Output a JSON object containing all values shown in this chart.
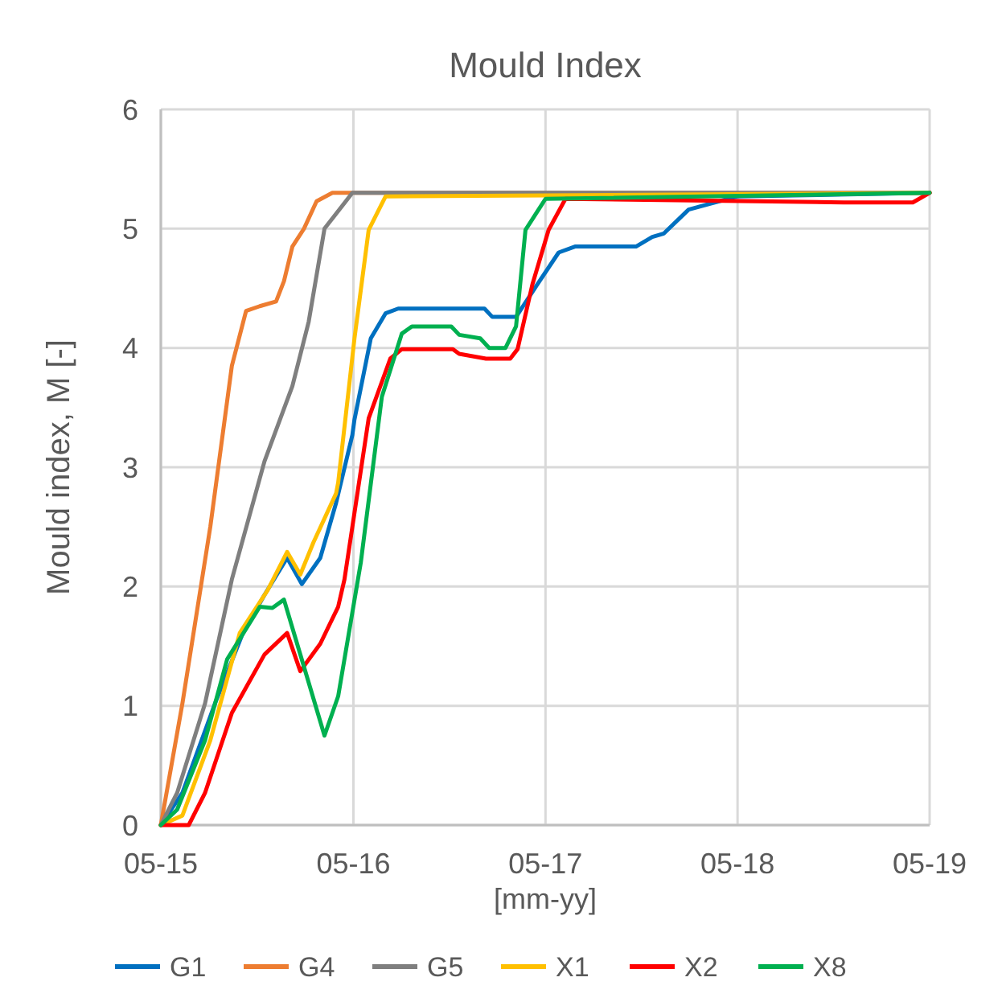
{
  "chart_data": {
    "type": "line",
    "title": "Mould Index",
    "xlabel": "[mm-yy]",
    "ylabel": "Mould index, M [-]",
    "xlim": [
      "2015-05",
      "2019-05"
    ],
    "xticks": [
      {
        "value": "2015-05",
        "label": "05-15"
      },
      {
        "value": "2016-05",
        "label": "05-16"
      },
      {
        "value": "2017-05",
        "label": "05-17"
      },
      {
        "value": "2018-05",
        "label": "05-18"
      },
      {
        "value": "2019-05",
        "label": "05-19"
      }
    ],
    "ylim": [
      0,
      6
    ],
    "yticks": [
      0,
      1,
      2,
      3,
      4,
      5,
      6
    ],
    "grid": true,
    "legend": "bottom",
    "marker": "none",
    "line_style": "solid",
    "series": [
      {
        "name": "G1",
        "color": "#0070c0",
        "x": [
          "2015-05-01",
          "2015-06-11",
          "2015-08-12",
          "2015-10-04",
          "2015-11-14",
          "2015-12-27",
          "2016-01-24",
          "2016-02-28",
          "2016-03-29",
          "2016-04-29",
          "2016-05-03",
          "2016-06-03",
          "2016-07-01",
          "2016-07-25",
          "2017-01-05",
          "2017-01-20",
          "2017-03-06",
          "2017-04-15",
          "2017-05-26",
          "2017-06-26",
          "2017-10-20",
          "2017-11-20",
          "2017-12-12",
          "2018-01-28",
          "2018-04-30",
          "2019-05-01"
        ],
        "values": [
          0,
          0.27,
          1.02,
          1.61,
          1.93,
          2.24,
          2.02,
          2.24,
          2.7,
          3.27,
          3.4,
          4.08,
          4.29,
          4.33,
          4.33,
          4.26,
          4.26,
          4.53,
          4.8,
          4.85,
          4.85,
          4.93,
          4.96,
          5.16,
          5.27,
          5.3
        ]
      },
      {
        "name": "G4",
        "color": "#ed7d31",
        "x": [
          "2015-05-01",
          "2015-06-11",
          "2015-08-03",
          "2015-09-13",
          "2015-10-10",
          "2015-11-05",
          "2015-12-06",
          "2015-12-21",
          "2016-01-06",
          "2016-01-28",
          "2016-02-21",
          "2016-03-22",
          "2019-05-01"
        ],
        "values": [
          0,
          1.02,
          2.5,
          3.85,
          4.31,
          4.35,
          4.39,
          4.56,
          4.85,
          5.0,
          5.23,
          5.3,
          5.3
        ]
      },
      {
        "name": "G5",
        "color": "#7f7f7f",
        "x": [
          "2015-05-01",
          "2015-06-01",
          "2015-07-24",
          "2015-09-13",
          "2015-11-14",
          "2016-01-06",
          "2016-02-06",
          "2016-03-07",
          "2016-04-29",
          "2019-05-01"
        ],
        "values": [
          0,
          0.27,
          1.02,
          2.06,
          3.05,
          3.68,
          4.22,
          5.0,
          5.3,
          5.3
        ]
      },
      {
        "name": "X1",
        "color": "#ffc000",
        "x": [
          "2015-05-01",
          "2015-06-11",
          "2015-08-03",
          "2015-09-28",
          "2015-11-20",
          "2015-12-27",
          "2016-01-21",
          "2016-02-15",
          "2016-03-29",
          "2016-04-02",
          "2016-05-03",
          "2016-05-30",
          "2016-07-01",
          "2019-05-01"
        ],
        "values": [
          0,
          0.08,
          0.71,
          1.61,
          1.97,
          2.29,
          2.1,
          2.37,
          2.78,
          2.87,
          4.08,
          4.99,
          5.27,
          5.3
        ]
      },
      {
        "name": "X2",
        "color": "#ff0000",
        "x": [
          "2015-05-01",
          "2015-06-23",
          "2015-07-24",
          "2015-09-13",
          "2015-11-14",
          "2015-12-27",
          "2016-01-21",
          "2016-02-28",
          "2016-04-02",
          "2016-04-14",
          "2016-05-30",
          "2016-07-10",
          "2016-08-01",
          "2016-11-06",
          "2016-11-18",
          "2017-01-08",
          "2017-02-23",
          "2017-03-09",
          "2017-04-06",
          "2017-05-07",
          "2017-06-08",
          "2018-11-19",
          "2019-03-30",
          "2019-05-01"
        ],
        "values": [
          0,
          0,
          0.27,
          0.94,
          1.43,
          1.61,
          1.29,
          1.52,
          1.83,
          2.06,
          3.41,
          3.91,
          3.99,
          3.99,
          3.95,
          3.91,
          3.91,
          3.99,
          4.53,
          4.99,
          5.25,
          5.22,
          5.22,
          5.3
        ]
      },
      {
        "name": "X8",
        "color": "#00b050",
        "x": [
          "2015-05-01",
          "2015-06-01",
          "2015-07-24",
          "2015-09-04",
          "2015-11-05",
          "2015-11-29",
          "2015-12-21",
          "2016-03-07",
          "2016-04-02",
          "2016-05-15",
          "2016-06-24",
          "2016-08-01",
          "2016-08-20",
          "2016-11-03",
          "2016-11-18",
          "2016-12-28",
          "2017-01-14",
          "2017-02-14",
          "2017-03-06",
          "2017-03-24",
          "2017-05-01",
          "2019-05-01"
        ],
        "values": [
          0,
          0.13,
          0.71,
          1.39,
          1.83,
          1.82,
          1.89,
          0.75,
          1.08,
          2.2,
          3.59,
          4.12,
          4.18,
          4.18,
          4.11,
          4.08,
          4.0,
          4.0,
          4.18,
          4.99,
          5.25,
          5.3
        ]
      }
    ]
  }
}
